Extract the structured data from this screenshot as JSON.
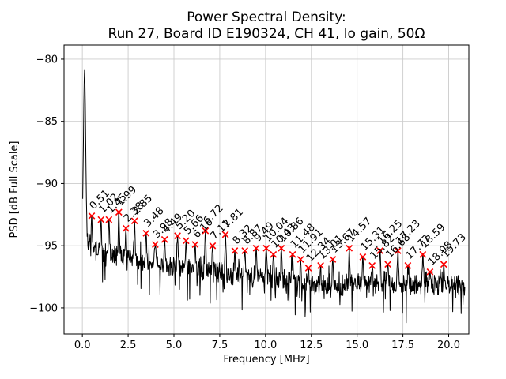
{
  "chart_data": {
    "type": "line",
    "title": "Power Spectral Density:",
    "subtitle": "Run 27, Board ID E190324, CH 41, lo gain, 50Ω",
    "xlabel": "Frequency [MHz]",
    "ylabel": "PSD [dB Full Scale]",
    "xlim": [
      -1.0,
      21.1
    ],
    "ylim": [
      -102.1,
      -78.86
    ],
    "x_ticks": [
      0,
      2.5,
      5,
      7.5,
      10,
      12.5,
      15,
      17.5,
      20
    ],
    "x_tick_labels": [
      "0.0",
      "2.5",
      "5.0",
      "7.5",
      "10.0",
      "12.5",
      "15.0",
      "17.5",
      "20.0"
    ],
    "y_ticks": [
      -80,
      -85,
      -90,
      -95,
      -100
    ],
    "y_tick_labels": [
      "−80",
      "−85",
      "−90",
      "−95",
      "−100"
    ],
    "grid": true,
    "legend": "none",
    "line_color": "#000000",
    "marker_color": "#ff0000",
    "marker_style": "x",
    "annotation_rotation_deg": 45,
    "dc_spike": {
      "frequency_mhz": 0.12,
      "psd_db": -80.9
    },
    "noise_floor_envelope": [
      {
        "f": 0.3,
        "psd": -94.5
      },
      {
        "f": 1.0,
        "psd": -95.7
      },
      {
        "f": 2.0,
        "psd": -95.8
      },
      {
        "f": 3.0,
        "psd": -96.2
      },
      {
        "f": 4.0,
        "psd": -96.6
      },
      {
        "f": 5.0,
        "psd": -96.6
      },
      {
        "f": 6.0,
        "psd": -96.8
      },
      {
        "f": 7.0,
        "psd": -97.0
      },
      {
        "f": 8.0,
        "psd": -97.3
      },
      {
        "f": 9.0,
        "psd": -97.4
      },
      {
        "f": 10.0,
        "psd": -97.5
      },
      {
        "f": 11.0,
        "psd": -97.7
      },
      {
        "f": 12.0,
        "psd": -98.0
      },
      {
        "f": 13.0,
        "psd": -98.3
      },
      {
        "f": 14.0,
        "psd": -98.3
      },
      {
        "f": 15.0,
        "psd": -98.0
      },
      {
        "f": 16.0,
        "psd": -98.0
      },
      {
        "f": 17.0,
        "psd": -98.0
      },
      {
        "f": 18.0,
        "psd": -98.2
      },
      {
        "f": 19.0,
        "psd": -98.0
      },
      {
        "f": 20.0,
        "psd": -98.2
      }
    ],
    "peaks": [
      {
        "f": 0.51,
        "psd": -92.6,
        "label": "0.51"
      },
      {
        "f": 1.02,
        "psd": -92.9,
        "label": "1.02"
      },
      {
        "f": 1.45,
        "psd": -92.9,
        "label": "1.45"
      },
      {
        "f": 1.99,
        "psd": -92.3,
        "label": "1.99"
      },
      {
        "f": 2.38,
        "psd": -93.6,
        "label": "2.38"
      },
      {
        "f": 2.85,
        "psd": -93.0,
        "label": "2.85"
      },
      {
        "f": 3.48,
        "psd": -94.0,
        "label": "3.48"
      },
      {
        "f": 3.98,
        "psd": -94.9,
        "label": "3.98"
      },
      {
        "f": 4.49,
        "psd": -94.5,
        "label": "4.49"
      },
      {
        "f": 5.2,
        "psd": -94.2,
        "label": "5.20"
      },
      {
        "f": 5.66,
        "psd": -94.6,
        "label": "5.66"
      },
      {
        "f": 6.16,
        "psd": -94.9,
        "label": "6.16"
      },
      {
        "f": 6.72,
        "psd": -93.8,
        "label": "6.72"
      },
      {
        "f": 7.11,
        "psd": -95.0,
        "label": "7.11"
      },
      {
        "f": 7.81,
        "psd": -94.1,
        "label": "7.81"
      },
      {
        "f": 8.32,
        "psd": -95.4,
        "label": "8.32"
      },
      {
        "f": 8.87,
        "psd": -95.4,
        "label": "8.87"
      },
      {
        "f": 9.49,
        "psd": -95.2,
        "label": "9.49"
      },
      {
        "f": 10.04,
        "psd": -95.2,
        "label": "10.04"
      },
      {
        "f": 10.43,
        "psd": -95.7,
        "label": "10.43"
      },
      {
        "f": 10.86,
        "psd": -95.2,
        "label": "10.86"
      },
      {
        "f": 11.48,
        "psd": -95.7,
        "label": "11.48"
      },
      {
        "f": 11.91,
        "psd": -96.1,
        "label": "11.91"
      },
      {
        "f": 12.34,
        "psd": -96.8,
        "label": "12.34"
      },
      {
        "f": 13.01,
        "psd": -96.6,
        "label": "13.01"
      },
      {
        "f": 13.67,
        "psd": -96.1,
        "label": "13.67"
      },
      {
        "f": 14.57,
        "psd": -95.2,
        "label": "14.57"
      },
      {
        "f": 15.31,
        "psd": -95.9,
        "label": "15.31"
      },
      {
        "f": 15.82,
        "psd": -96.6,
        "label": "15.82"
      },
      {
        "f": 16.25,
        "psd": -95.4,
        "label": "16.25"
      },
      {
        "f": 16.68,
        "psd": -96.5,
        "label": "16.68"
      },
      {
        "f": 17.23,
        "psd": -95.4,
        "label": "17.23"
      },
      {
        "f": 17.77,
        "psd": -96.6,
        "label": "17.77"
      },
      {
        "f": 18.59,
        "psd": -95.7,
        "label": "18.59"
      },
      {
        "f": 18.98,
        "psd": -97.1,
        "label": "18.98"
      },
      {
        "f": 19.73,
        "psd": -96.5,
        "label": "19.73"
      }
    ]
  }
}
